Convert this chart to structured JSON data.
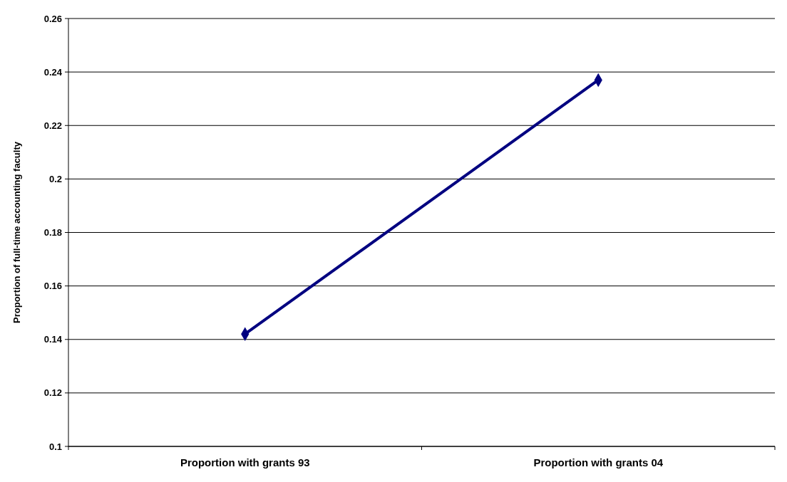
{
  "chart_data": {
    "type": "line",
    "ylabel": "Proportion of full-time accounting faculty",
    "categories": [
      "Proportion with grants 93",
      "Proportion with grants 04"
    ],
    "series": [
      {
        "color": "#000080",
        "values": [
          0.142,
          0.237
        ]
      }
    ],
    "ylim": [
      0.1,
      0.26
    ],
    "yticks": [
      0.1,
      0.12,
      0.14,
      0.16,
      0.18,
      0.2,
      0.22,
      0.24,
      0.26
    ],
    "grid": "y",
    "marker": "diamond",
    "line_style": "solid"
  }
}
